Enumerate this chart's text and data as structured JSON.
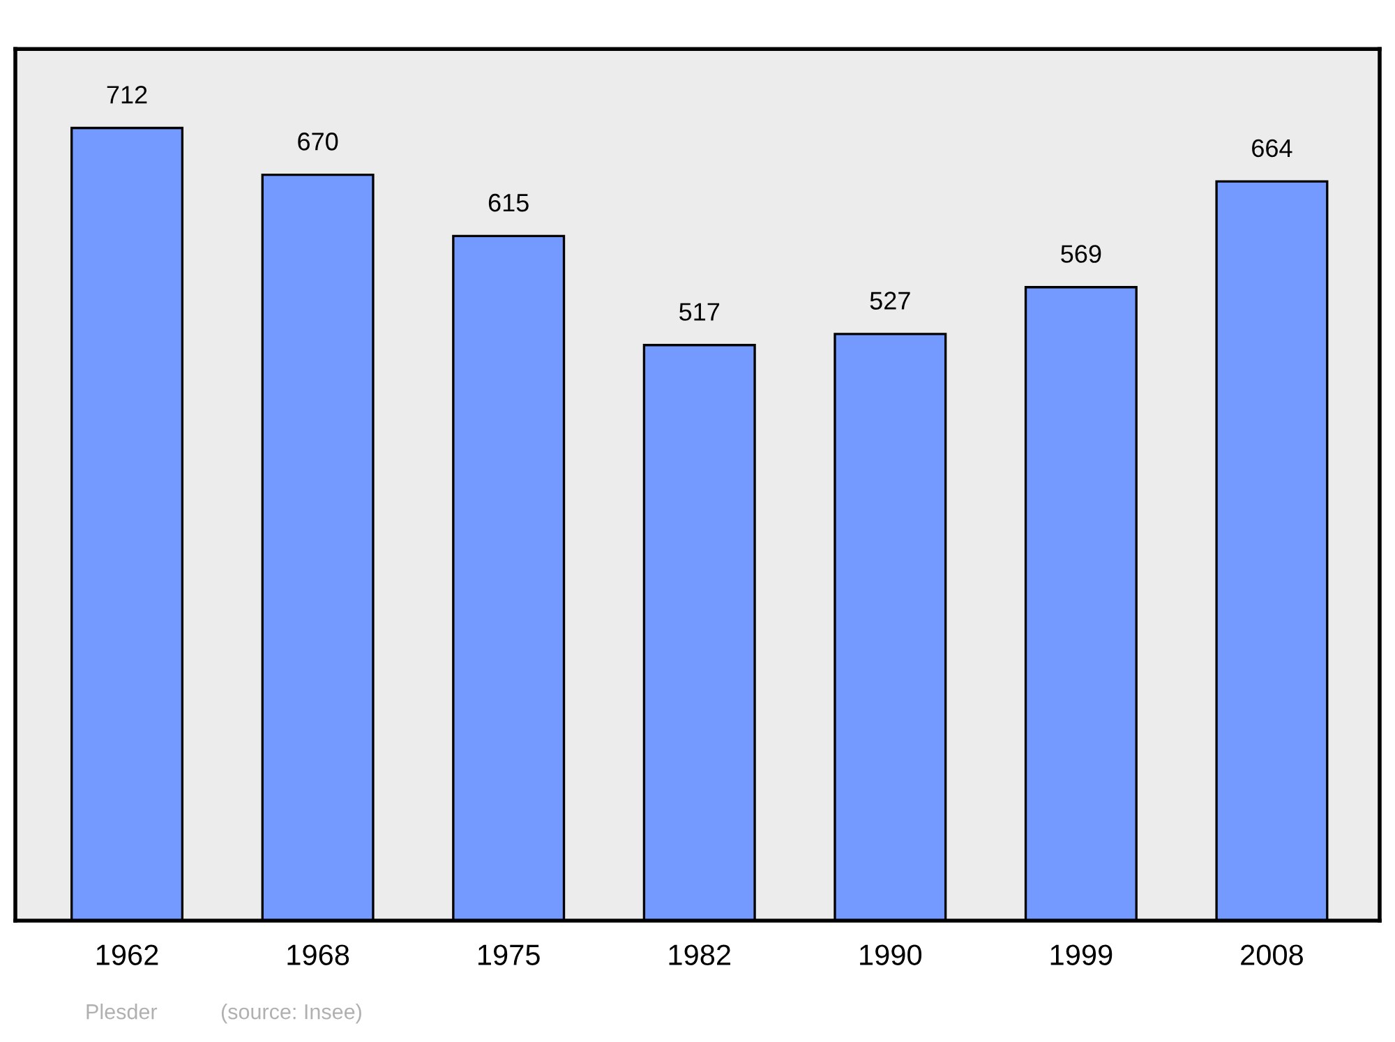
{
  "chart_data": {
    "type": "bar",
    "categories": [
      "1962",
      "1968",
      "1975",
      "1982",
      "1990",
      "1999",
      "2008"
    ],
    "values": [
      712,
      670,
      615,
      517,
      527,
      569,
      664
    ],
    "color": "#7499ff",
    "ylim": [
      0,
      783
    ],
    "data_labels": true,
    "grid": false,
    "legend": false,
    "annotations": [
      "Plesder",
      "(source: Insee)"
    ]
  }
}
